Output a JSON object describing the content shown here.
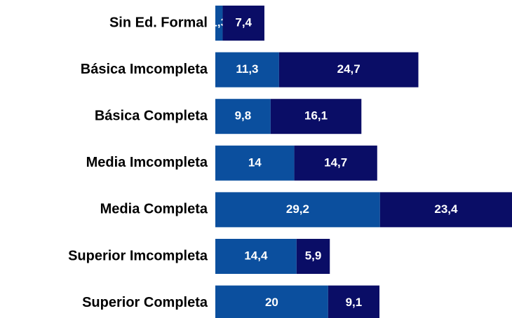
{
  "chart_data": {
    "type": "stacked-barh",
    "categories": [
      "Sin Ed. Formal",
      "Básica Imcompleta",
      "Básica Completa",
      "Media Imcompleta",
      "Media Completa",
      "Superior Imcompleta",
      "Superior Completa"
    ],
    "series": [
      {
        "color": "#0b4f9e",
        "values": [
          1.3,
          11.3,
          9.8,
          14,
          29.2,
          14.4,
          20
        ],
        "value_labels": [
          "1,3",
          "11,3",
          "9,8",
          "14",
          "29,2",
          "14,4",
          "20"
        ]
      },
      {
        "color": "#0a0d66",
        "values": [
          7.4,
          24.7,
          16.1,
          14.7,
          23.4,
          5.9,
          9.1
        ],
        "value_labels": [
          "7,4",
          "24,7",
          "16,1",
          "14,7",
          "23,4",
          "5,9",
          "9,1"
        ]
      }
    ]
  }
}
